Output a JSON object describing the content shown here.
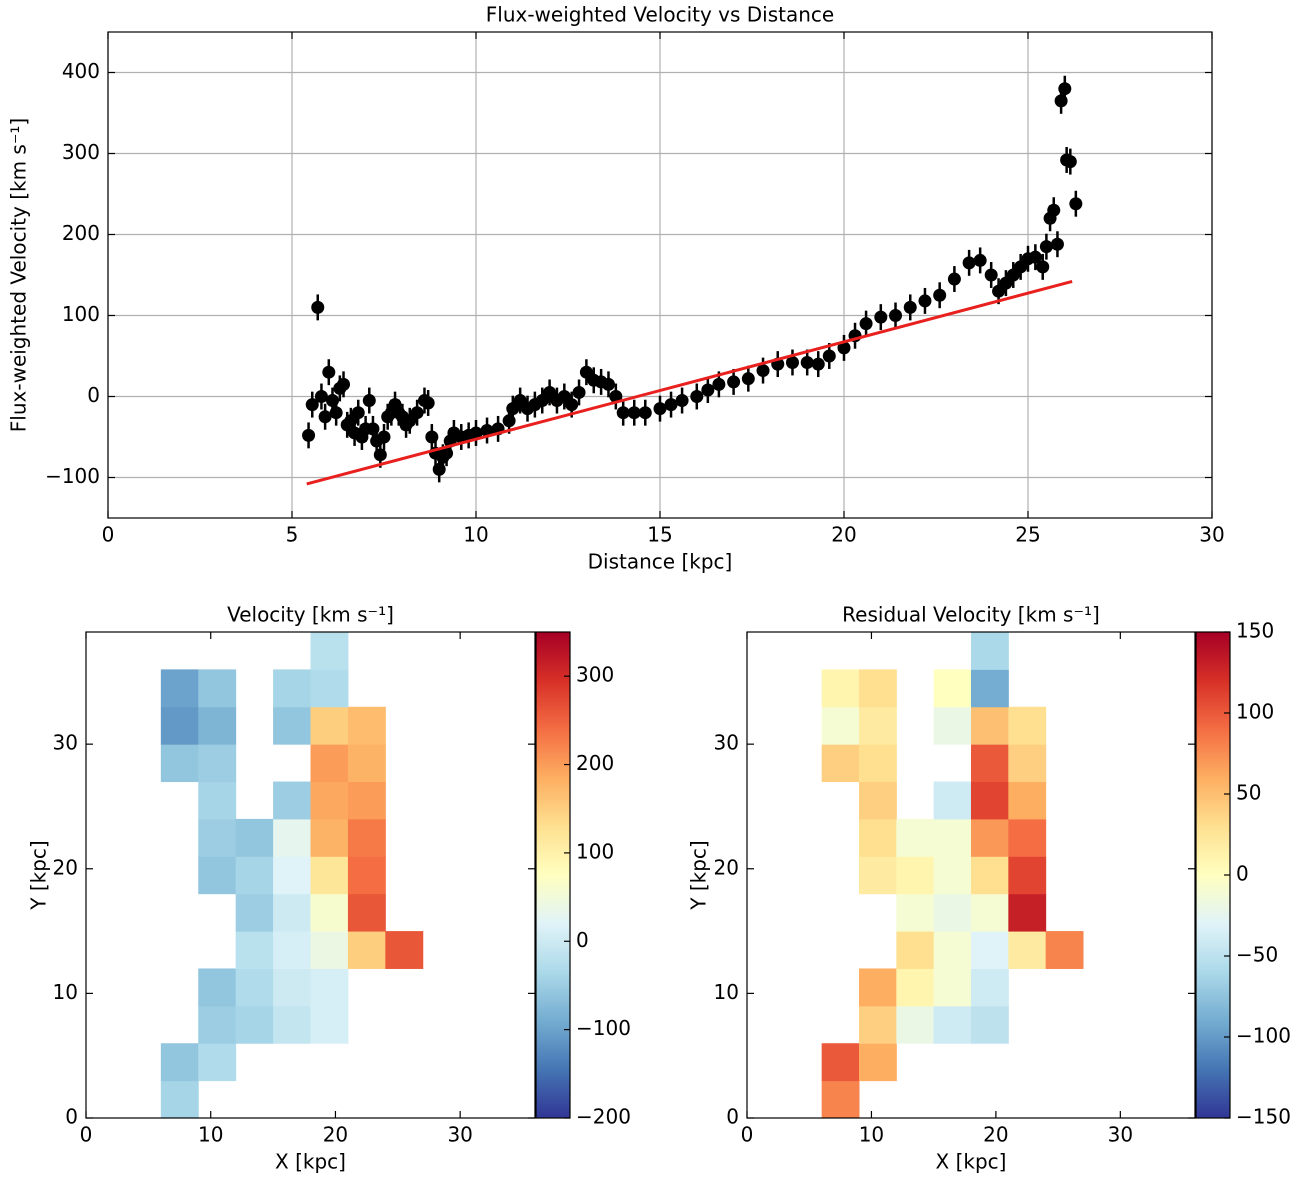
{
  "chart_data": [
    {
      "type": "scatter",
      "title": "Flux-weighted Velocity vs Distance",
      "xlabel": "Distance [kpc]",
      "ylabel": "Flux-weighted Velocity [km s⁻¹]",
      "xlim": [
        0,
        30
      ],
      "ylim": [
        -150,
        450
      ],
      "xticks": [
        0,
        5,
        10,
        15,
        20,
        25,
        30
      ],
      "yticks": [
        {
          "value": -100,
          "label": "−100"
        },
        0,
        100,
        200,
        300,
        400
      ],
      "grid": true,
      "series": [
        {
          "type": "scatter",
          "color": "#000000",
          "yerr": 16,
          "x": [
            5.45,
            5.55,
            5.7,
            5.8,
            5.9,
            6.0,
            6.1,
            6.2,
            6.3,
            6.4,
            6.5,
            6.6,
            6.7,
            6.8,
            6.9,
            7.0,
            7.1,
            7.2,
            7.3,
            7.4,
            7.5,
            7.6,
            7.7,
            7.8,
            7.9,
            8.0,
            8.1,
            8.2,
            8.4,
            8.6,
            8.7,
            8.8,
            8.9,
            9.0,
            9.1,
            9.2,
            9.3,
            9.4,
            9.6,
            9.8,
            10.0,
            10.3,
            10.6,
            10.9,
            11.0,
            11.2,
            11.4,
            11.6,
            11.8,
            12.0,
            12.2,
            12.4,
            12.6,
            12.8,
            13.0,
            13.2,
            13.4,
            13.6,
            13.8,
            14.0,
            14.3,
            14.6,
            15.0,
            15.3,
            15.6,
            16.0,
            16.3,
            16.6,
            17.0,
            17.4,
            17.8,
            18.2,
            18.6,
            19.0,
            19.3,
            19.6,
            20.0,
            20.3,
            20.6,
            21.0,
            21.4,
            21.8,
            22.2,
            22.6,
            23.0,
            23.4,
            23.7,
            24.0,
            24.2,
            24.4,
            24.6,
            24.8,
            25.0,
            25.2,
            25.4,
            25.5,
            25.6,
            25.7,
            25.8,
            25.9,
            26.0,
            26.05,
            26.15,
            26.3
          ],
          "values": [
            -48,
            -10,
            110,
            0,
            -25,
            30,
            -5,
            -20,
            10,
            15,
            -35,
            -30,
            -45,
            -20,
            -50,
            -40,
            -5,
            -40,
            -55,
            -72,
            -50,
            -25,
            -20,
            -10,
            -20,
            -25,
            -35,
            -30,
            -20,
            -5,
            -8,
            -50,
            -70,
            -90,
            -75,
            -70,
            -55,
            -45,
            -50,
            -48,
            -45,
            -42,
            -40,
            -30,
            -15,
            -5,
            -15,
            -10,
            -5,
            5,
            -5,
            0,
            -10,
            5,
            30,
            20,
            18,
            15,
            0,
            -20,
            -20,
            -20,
            -15,
            -10,
            -5,
            0,
            8,
            15,
            18,
            22,
            32,
            40,
            42,
            42,
            40,
            50,
            60,
            75,
            90,
            98,
            100,
            110,
            118,
            125,
            145,
            165,
            168,
            150,
            130,
            140,
            150,
            160,
            170,
            172,
            160,
            185,
            220,
            230,
            188,
            365,
            380,
            292,
            290,
            238
          ]
        },
        {
          "type": "line",
          "color": "#e8201e",
          "x": [
            5.4,
            26.2
          ],
          "values": [
            -108,
            142
          ]
        }
      ]
    },
    {
      "type": "heatmap",
      "title": "Velocity [km s⁻¹]",
      "xlabel": "X [kpc]",
      "ylabel": "Y [kpc]",
      "xlim": [
        0,
        36
      ],
      "ylim": [
        0,
        39
      ],
      "xticks": [
        0,
        10,
        20,
        30
      ],
      "yticks": [
        0,
        10,
        20,
        30
      ],
      "zlim": [
        -200,
        350
      ],
      "cticks": [
        {
          "value": -200,
          "label": "−200"
        },
        {
          "value": -100,
          "label": "−100"
        },
        0,
        100,
        200,
        300
      ],
      "colorscale": [
        "#313695",
        "#4575b4",
        "#74add1",
        "#abd9e9",
        "#e0f3f8",
        "#ffffbf",
        "#fee090",
        "#fdae61",
        "#f46d43",
        "#d73027",
        "#a50026"
      ],
      "x": [
        4.5,
        7.5,
        10.5,
        13.5,
        16.5,
        19.5,
        22.5,
        25.5
      ],
      "y": [
        1.5,
        4.5,
        7.5,
        10.5,
        13.5,
        16.5,
        19.5,
        22.5,
        25.5,
        28.5,
        31.5,
        34.5,
        37.5
      ],
      "z": [
        [
          null,
          -40,
          null,
          null,
          null,
          null,
          null,
          null
        ],
        [
          null,
          -60,
          -30,
          null,
          null,
          null,
          null,
          null
        ],
        [
          null,
          null,
          -50,
          -40,
          -10,
          10,
          null,
          null
        ],
        [
          null,
          null,
          -60,
          -30,
          0,
          10,
          null,
          null
        ],
        [
          null,
          null,
          null,
          -20,
          10,
          40,
          150,
          260
        ],
        [
          null,
          null,
          null,
          -50,
          0,
          60,
          260,
          null
        ],
        [
          null,
          null,
          -60,
          -40,
          20,
          120,
          240,
          null
        ],
        [
          null,
          null,
          -50,
          -60,
          30,
          180,
          230,
          null
        ],
        [
          null,
          null,
          -40,
          null,
          -50,
          190,
          200,
          null
        ],
        [
          null,
          -60,
          -50,
          null,
          null,
          200,
          180,
          null
        ],
        [
          null,
          -110,
          -80,
          null,
          -60,
          150,
          170,
          null
        ],
        [
          null,
          -100,
          -60,
          null,
          -40,
          -30,
          null,
          null
        ],
        [
          null,
          null,
          null,
          null,
          null,
          -20,
          null,
          null
        ]
      ]
    },
    {
      "type": "heatmap",
      "title": "Residual Velocity [km s⁻¹]",
      "xlabel": "X [kpc]",
      "ylabel": "Y [kpc]",
      "xlim": [
        0,
        36
      ],
      "ylim": [
        0,
        39
      ],
      "xticks": [
        0,
        10,
        20,
        30
      ],
      "yticks": [
        0,
        10,
        20,
        30
      ],
      "zlim": [
        -150,
        150
      ],
      "cticks": [
        {
          "value": -150,
          "label": "−150"
        },
        {
          "value": -100,
          "label": "−100"
        },
        {
          "value": -50,
          "label": "−50"
        },
        0,
        50,
        100,
        150
      ],
      "colorscale": [
        "#313695",
        "#4575b4",
        "#74add1",
        "#abd9e9",
        "#e0f3f8",
        "#ffffbf",
        "#fee090",
        "#fdae61",
        "#f46d43",
        "#d73027",
        "#a50026"
      ],
      "x": [
        4.5,
        7.5,
        10.5,
        13.5,
        16.5,
        19.5,
        22.5,
        25.5
      ],
      "y": [
        1.5,
        4.5,
        7.5,
        10.5,
        13.5,
        16.5,
        19.5,
        22.5,
        25.5,
        28.5,
        31.5,
        34.5,
        37.5
      ],
      "z": [
        [
          null,
          80,
          null,
          null,
          null,
          null,
          null,
          null
        ],
        [
          null,
          100,
          60,
          null,
          null,
          null,
          null,
          null
        ],
        [
          null,
          null,
          40,
          -20,
          -40,
          -50,
          null,
          null
        ],
        [
          null,
          null,
          60,
          10,
          -10,
          -40,
          null,
          null
        ],
        [
          null,
          null,
          null,
          30,
          -10,
          -30,
          20,
          80
        ],
        [
          null,
          null,
          null,
          -10,
          -20,
          -10,
          130,
          null
        ],
        [
          null,
          null,
          20,
          10,
          -10,
          30,
          110,
          null
        ],
        [
          null,
          null,
          30,
          -10,
          -10,
          70,
          90,
          null
        ],
        [
          null,
          null,
          40,
          null,
          -40,
          110,
          60,
          null
        ],
        [
          null,
          40,
          30,
          null,
          null,
          100,
          40,
          null
        ],
        [
          null,
          -10,
          20,
          null,
          -20,
          50,
          30,
          null
        ],
        [
          null,
          10,
          30,
          null,
          0,
          -90,
          null,
          null
        ],
        [
          null,
          null,
          null,
          null,
          null,
          -60,
          null,
          null
        ]
      ]
    }
  ]
}
